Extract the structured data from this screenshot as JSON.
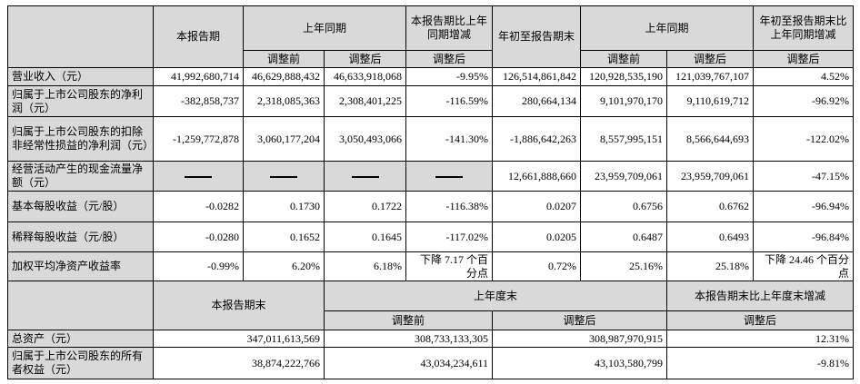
{
  "top_header": {
    "current_period": "本报告期",
    "same_period_last_year": "上年同期",
    "change_current": "本报告期比上年同期增减",
    "ytd": "年初至报告期末",
    "same_period_last_year_ytd": "上年同期",
    "change_ytd": "年初至报告期末比上年同期增减",
    "before_adjust": "调整前",
    "after_adjust": "调整后"
  },
  "rows": [
    {
      "label": "营业收入（元）",
      "v": [
        "41,992,680,714",
        "46,629,888,432",
        "46,633,918,068",
        "-9.95%",
        "126,514,861,842",
        "120,928,535,190",
        "121,039,767,107",
        "4.52%"
      ]
    },
    {
      "label": "归属于上市公司股东的净利润（元）",
      "v": [
        "-382,858,737",
        "2,318,085,363",
        "2,308,401,225",
        "-116.59%",
        "280,664,134",
        "9,101,970,170",
        "9,110,619,712",
        "-96.92%"
      ]
    },
    {
      "label": "归属于上市公司股东的扣除非经常性损益的净利润（元）",
      "v": [
        "-1,259,772,878",
        "3,060,177,204",
        "3,050,493,066",
        "-141.30%",
        "-1,886,642,263",
        "8,557,995,151",
        "8,566,644,693",
        "-122.02%"
      ]
    },
    {
      "label": "经营活动产生的现金流量净额（元）",
      "v": [
        "—",
        "—",
        "—",
        "—",
        "12,661,888,660",
        "23,959,709,061",
        "23,959,709,061",
        "-47.15%"
      ]
    },
    {
      "label": "基本每股收益（元/股）",
      "v": [
        "-0.0282",
        "0.1730",
        "0.1722",
        "-116.38%",
        "0.0207",
        "0.6756",
        "0.6762",
        "-96.94%"
      ]
    },
    {
      "label": "稀释每股收益（元/股）",
      "v": [
        "-0.0280",
        "0.1652",
        "0.1645",
        "-117.02%",
        "0.0205",
        "0.6487",
        "0.6493",
        "-96.84%"
      ]
    },
    {
      "label": "加权平均净资产收益率",
      "v": [
        "-0.99%",
        "6.20%",
        "6.18%",
        "下降 7.17 个百分点",
        "0.72%",
        "25.16%",
        "25.18%",
        "下降 24.46 个百分点"
      ]
    }
  ],
  "bottom_header": {
    "period_end": "本报告期末",
    "last_year_end": "上年度末",
    "change": "本报告期末比上年度末增减",
    "before_adjust": "调整前",
    "after_adjust": "调整后",
    "after_adjust_change": "调整后"
  },
  "bottom_rows": [
    {
      "label": "总资产（元）",
      "v": [
        "347,011,613,569",
        "308,733,133,305",
        "308,987,970,915",
        "12.31%"
      ]
    },
    {
      "label": "归属于上市公司股东的所有者权益（元）",
      "v": [
        "38,874,222,766",
        "43,034,234,611",
        "43,103,580,799",
        "-9.81%"
      ]
    }
  ]
}
